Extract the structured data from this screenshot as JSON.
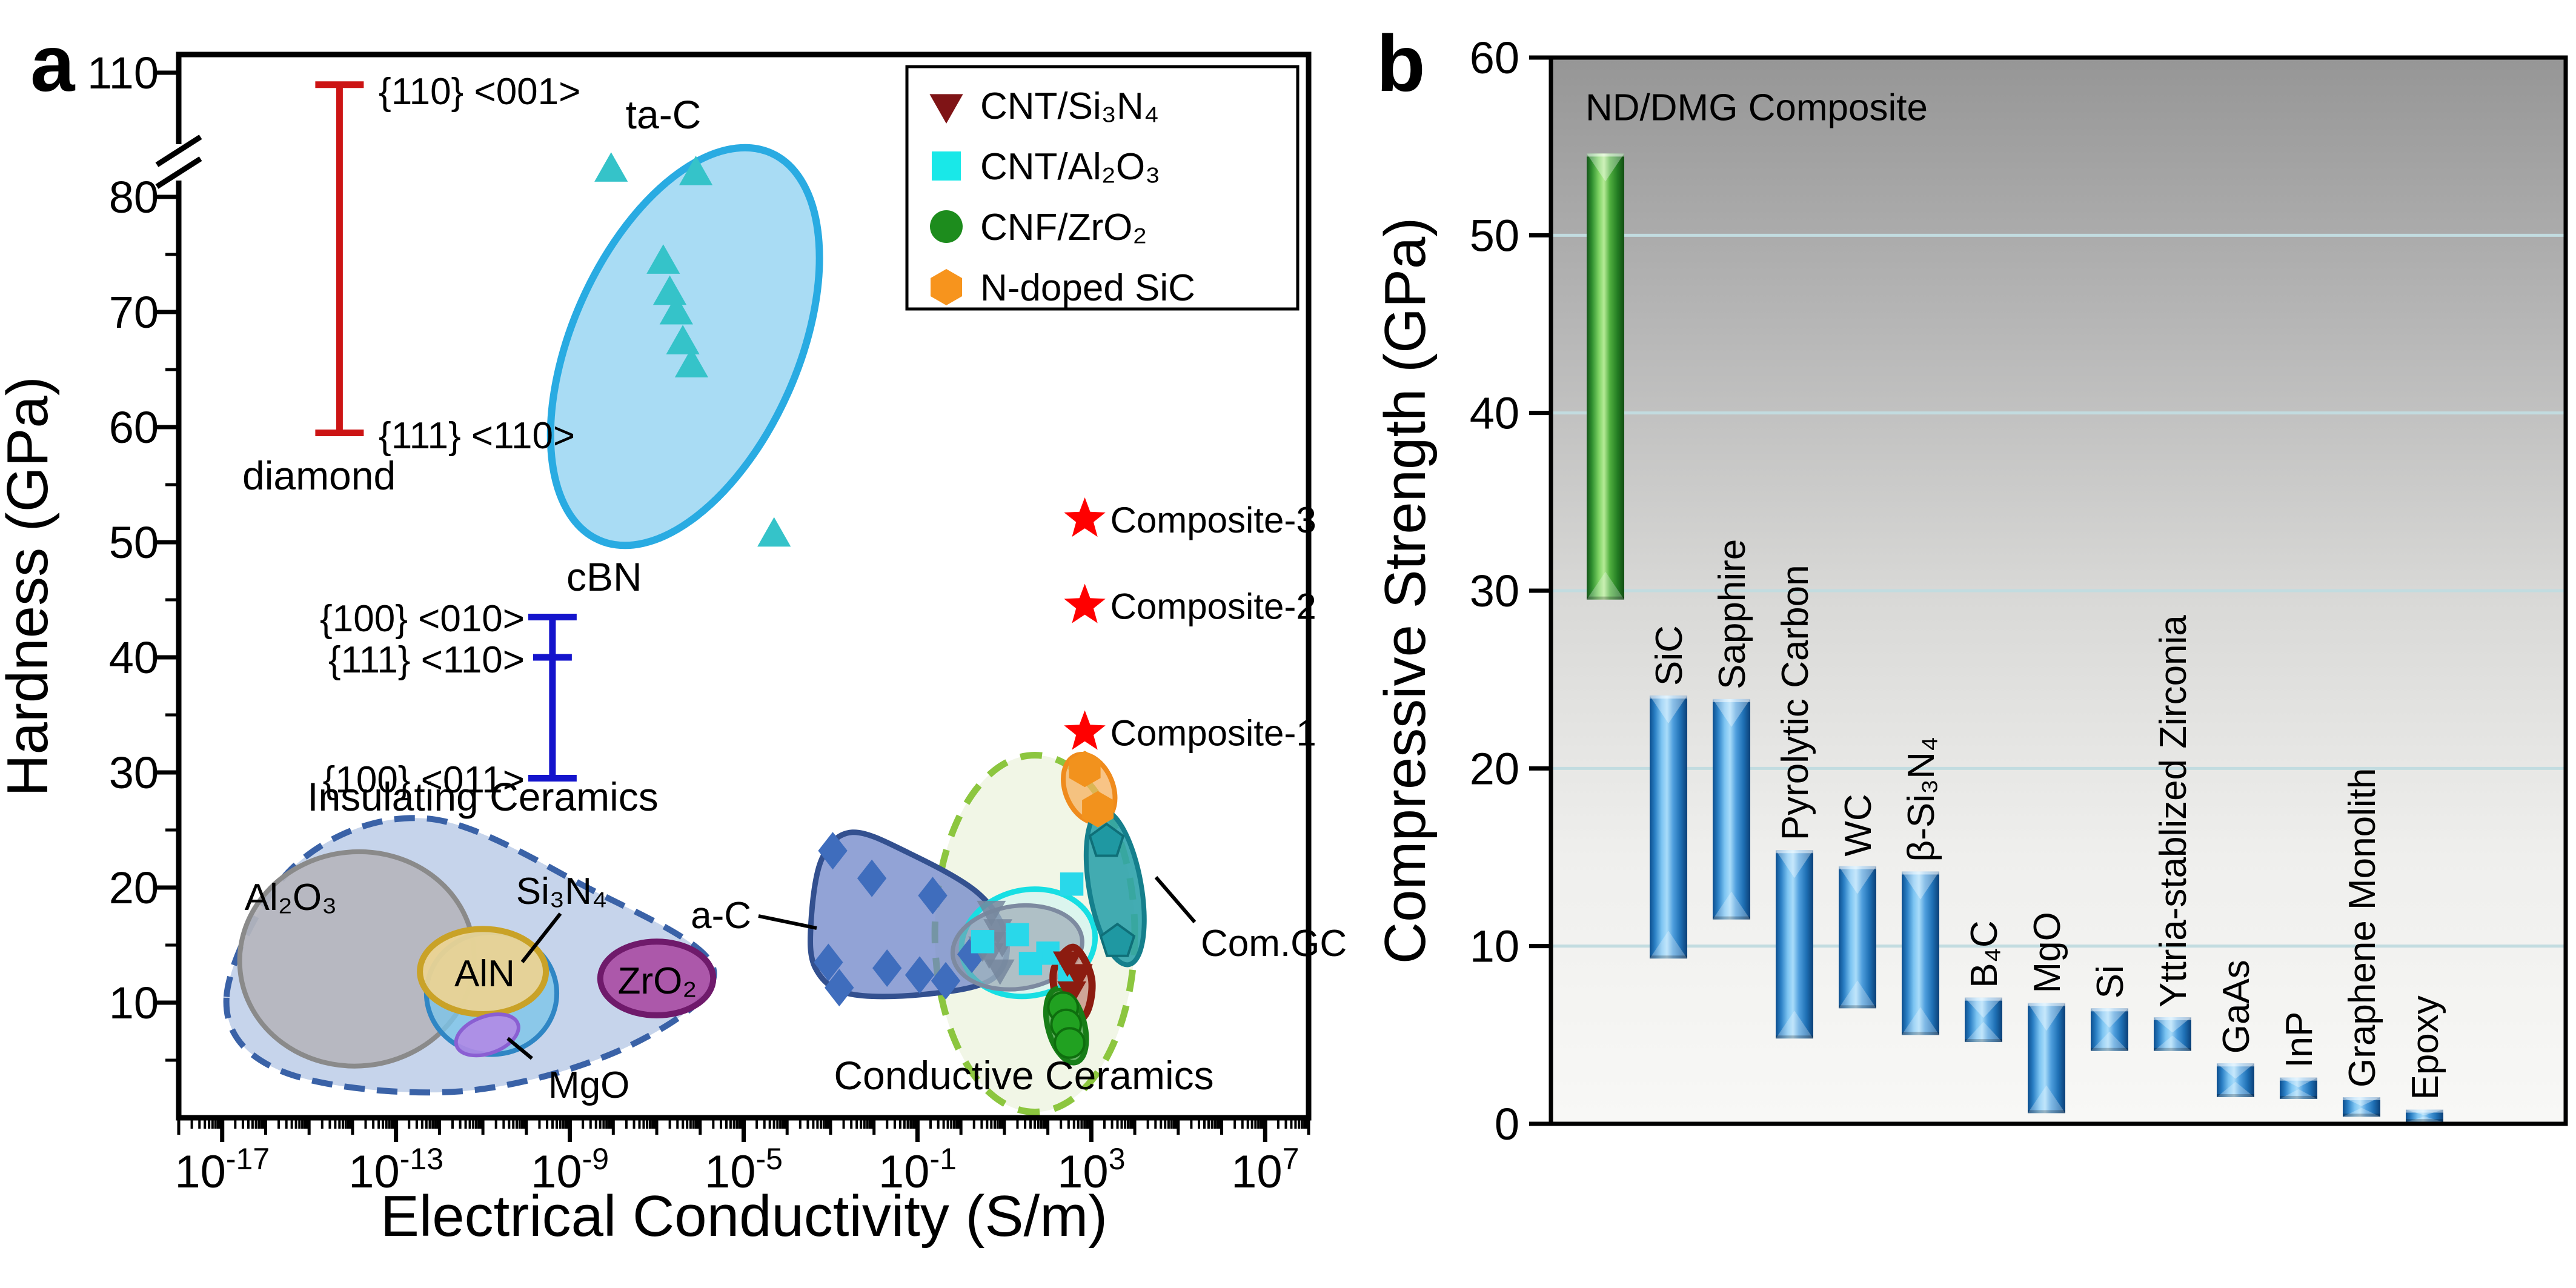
{
  "chart_data": [
    {
      "id": "panel-a",
      "panel_letter": "a",
      "type": "scatter",
      "xlabel": "Electrical Conductivity (S/m)",
      "ylabel": "Hardness (GPa)",
      "xscale": "log",
      "xlim_exponents": [
        -18,
        8
      ],
      "xtick_exponents": [
        -17,
        -13,
        -9,
        -5,
        -1,
        3,
        7
      ],
      "ylim": [
        0,
        110
      ],
      "yticks": [
        10,
        20,
        30,
        40,
        50,
        60,
        70,
        80
      ],
      "y_top_tick": 110,
      "y_axis_break_between": [
        85,
        110
      ],
      "legend": [
        {
          "label": "CNT/Si₃N₄",
          "marker": "triangle-down",
          "color": "#7f1416"
        },
        {
          "label": "CNT/Al₂O₃",
          "marker": "square",
          "color": "#19e8e8"
        },
        {
          "label": "CNF/ZrO₂",
          "marker": "circle",
          "color": "#1d8c1d"
        },
        {
          "label": "N-doped SiC",
          "marker": "hexagon",
          "color": "#f7941d"
        }
      ],
      "labels": {
        "ta_c": "ta-C",
        "a_c": "a-C",
        "com_gc": "Com.GC",
        "al2o3": "Al₂O₃",
        "si3n4": "Si₃N₄",
        "aln": "AlN",
        "zro2": "ZrO₂",
        "mgo": "MgO",
        "insulating": "Insulating Ceramics",
        "conductive": "Conductive Ceramics",
        "diamond": "diamond",
        "diamond_top": "{110} <001>",
        "diamond_bottom": "{111} <110>",
        "cbn": "cBN",
        "cbn_top": "{100} <010>",
        "cbn_mid": "{111} <110>",
        "cbn_bottom": "{100} <011>"
      },
      "error_bars": [
        {
          "name": "diamond",
          "x_exp": -14.3,
          "top": 105.5,
          "bottom": 59.5,
          "color": "#cc1414"
        },
        {
          "name": "cBN",
          "x_exp": -9.4,
          "top": 43.5,
          "mid": 40.0,
          "bottom": 29.5,
          "color": "#1414cc"
        }
      ],
      "stars": [
        {
          "label": "Composite-3",
          "x_exp": 2.85,
          "y": 52.0
        },
        {
          "label": "Composite-2",
          "x_exp": 2.85,
          "y": 44.5
        },
        {
          "label": "Composite-1",
          "x_exp": 2.85,
          "y": 33.5
        }
      ],
      "regions": [
        {
          "name": "insulating-ceramics",
          "shape": "blob",
          "points": [
            [
              -16.9,
              10.5
            ],
            [
              -15.3,
              22
            ],
            [
              -12.3,
              26
            ],
            [
              -8.6,
              20
            ],
            [
              -5.7,
              13
            ],
            [
              -7.6,
              6.3
            ],
            [
              -11.5,
              2.3
            ],
            [
              -15.6,
              4
            ]
          ],
          "fill": "#bccde8",
          "fill_opacity": 0.85,
          "stroke": "#3a62a7",
          "stroke_width": 10,
          "dash": "34 20"
        },
        {
          "name": "Al2O3",
          "shape": "ellipse",
          "cx_exp": -13.9,
          "cy": 13.8,
          "rx_dec": 2.7,
          "ry": 9.3,
          "rot": -6,
          "fill": "#b5b5bd",
          "fill_opacity": 0.92,
          "stroke": "#8a8a8a",
          "stroke_width": 8
        },
        {
          "name": "Si3N4",
          "shape": "ellipse",
          "cx_exp": -10.8,
          "cy": 10.8,
          "rx_dec": 1.5,
          "ry": 5.3,
          "rot": 0,
          "fill": "#7cc4e8",
          "fill_opacity": 0.8,
          "stroke": "#2f86c4",
          "stroke_width": 8
        },
        {
          "name": "AlN",
          "shape": "ellipse",
          "cx_exp": -11.0,
          "cy": 12.7,
          "rx_dec": 1.45,
          "ry": 3.7,
          "rot": 0,
          "fill": "#ead394",
          "fill_opacity": 0.95,
          "stroke": "#c9a227",
          "stroke_width": 10
        },
        {
          "name": "ZrO2",
          "shape": "ellipse",
          "cx_exp": -7.0,
          "cy": 12.1,
          "rx_dec": 1.3,
          "ry": 3.2,
          "rot": 0,
          "fill": "#ab51a6",
          "fill_opacity": 0.95,
          "stroke": "#6f1a6b",
          "stroke_width": 10
        },
        {
          "name": "MgO",
          "shape": "ellipse",
          "cx_exp": -10.9,
          "cy": 7.2,
          "rx_dec": 0.75,
          "ry": 1.6,
          "rot": -20,
          "fill": "#b08ae6",
          "fill_opacity": 0.9,
          "stroke": "#8a5fd2",
          "stroke_width": 6
        },
        {
          "name": "conductive-ceramics",
          "shape": "ellipse",
          "cx_exp": 1.7,
          "cy": 16,
          "rx_dec": 2.3,
          "ry": 15.5,
          "rot": 0,
          "fill": "#eef5e2",
          "fill_opacity": 0.85,
          "stroke": "#8cc63f",
          "stroke_width": 11,
          "dash": "36 24"
        },
        {
          "name": "a-C",
          "shape": "blob",
          "points": [
            [
              -3.45,
              17
            ],
            [
              -3.2,
              22.5
            ],
            [
              -2.5,
              24.8
            ],
            [
              -1.2,
              23
            ],
            [
              0.4,
              19.5
            ],
            [
              1.05,
              15.5
            ],
            [
              0.7,
              12
            ],
            [
              -0.9,
              10.7
            ],
            [
              -2.6,
              10.8
            ],
            [
              -3.35,
              13
            ]
          ],
          "fill": "#6d84c8",
          "fill_opacity": 0.75,
          "stroke": "#33508f",
          "stroke_width": 9
        },
        {
          "name": "CNT-Al2O3-region",
          "shape": "ellipse",
          "cx_exp": 1.55,
          "cy": 15.2,
          "rx_dec": 1.55,
          "ry": 4.6,
          "rot": -12,
          "fill": "#c9f4f4",
          "fill_opacity": 0.55,
          "stroke": "#17dfe3",
          "stroke_width": 9
        },
        {
          "name": "gray-region",
          "shape": "ellipse",
          "cx_exp": 1.3,
          "cy": 14.8,
          "rx_dec": 1.5,
          "ry": 3.6,
          "rot": -8,
          "fill": "#8a93a6",
          "fill_opacity": 0.55,
          "stroke": "#7d8aa0",
          "stroke_width": 7
        },
        {
          "name": "CNT-Si3N4-region",
          "shape": "blob",
          "points": [
            [
              2.15,
              13.0
            ],
            [
              2.6,
              14.8
            ],
            [
              3.0,
              12.2
            ],
            [
              2.9,
              9.2
            ],
            [
              2.5,
              8.2
            ],
            [
              2.2,
              10.3
            ]
          ],
          "fill": "#c59184",
          "fill_opacity": 0.8,
          "stroke": "#8c1c10",
          "stroke_width": 12
        },
        {
          "name": "N-doped-SiC-region",
          "shape": "ellipse",
          "cx_exp": 2.95,
          "cy": 28.6,
          "rx_dec": 0.55,
          "ry": 3.1,
          "rot": -22,
          "fill": "#f5b05e",
          "fill_opacity": 0.75,
          "stroke": "#ef8b1d",
          "stroke_width": 8
        },
        {
          "name": "Com-GC-region",
          "shape": "ellipse",
          "cx_exp": 3.55,
          "cy": 20,
          "rx_dec": 0.6,
          "ry": 6.8,
          "rot": -10,
          "fill": "#2fa3ab",
          "fill_opacity": 0.9,
          "stroke": "#157f8c",
          "stroke_width": 8
        },
        {
          "name": "CNF-ZrO2-region",
          "shape": "ellipse",
          "cx_exp": 2.42,
          "cy": 8.0,
          "rx_dec": 0.42,
          "ry": 3.3,
          "rot": -15,
          "fill": "#57ab57",
          "fill_opacity": 0.9,
          "stroke": "#177d17",
          "stroke_width": 9
        },
        {
          "name": "ta-C-region",
          "shape": "ellipse",
          "cx_exp": -6.35,
          "cy": 67,
          "rx_dec": 2.6,
          "ry": 18.4,
          "rot": 24,
          "fill": "#a9dcf4",
          "fill_opacity": 1,
          "stroke": "#29abe2",
          "stroke_width": 12
        }
      ],
      "series": [
        {
          "name": "ta-C",
          "marker": "triangle-up",
          "color": "#35c3c9",
          "size": 30,
          "points": [
            [
              -8.05,
              82.3
            ],
            [
              -6.1,
              82.0
            ],
            [
              -6.85,
              74.3
            ],
            [
              -6.7,
              71.6
            ],
            [
              -6.55,
              69.9
            ],
            [
              -6.4,
              67.3
            ],
            [
              -6.2,
              65.3
            ],
            [
              -4.3,
              50.6
            ]
          ]
        },
        {
          "name": "a-C",
          "marker": "diamond",
          "color": "#3f6dbd",
          "size": 31,
          "points": [
            [
              -2.95,
              23.2
            ],
            [
              -2.05,
              20.8
            ],
            [
              -0.65,
              19.3
            ],
            [
              -3.05,
              13.5
            ],
            [
              -1.7,
              13.0
            ],
            [
              -0.95,
              12.4
            ],
            [
              -2.8,
              11.3
            ],
            [
              0.25,
              14.2
            ],
            [
              -0.35,
              11.9
            ]
          ]
        },
        {
          "name": "unlabeled-gray",
          "marker": "triangle-down",
          "color": "#76869c",
          "opacity": 0.85,
          "size": 26,
          "points": [
            [
              0.7,
              18.0
            ],
            [
              0.85,
              16.4
            ],
            [
              0.95,
              15.3
            ],
            [
              0.5,
              14.9
            ],
            [
              0.65,
              14.3
            ],
            [
              0.9,
              12.9
            ]
          ]
        },
        {
          "name": "CNT/Al₂O₃",
          "marker": "square",
          "color": "#29d8ea",
          "size": 24,
          "points": [
            [
              2.55,
              20.3
            ],
            [
              1.3,
              15.9
            ],
            [
              0.5,
              15.3
            ],
            [
              2.0,
              14.3
            ],
            [
              1.6,
              13.4
            ],
            [
              2.5,
              12.3
            ]
          ]
        },
        {
          "name": "CNT/Si₃N₄",
          "marker": "triangle-down",
          "color": "#8c1c10",
          "size": 26,
          "points": [
            [
              2.45,
              13.6
            ],
            [
              2.7,
              12.5
            ],
            [
              2.55,
              11.0
            ]
          ]
        },
        {
          "name": "CNF/ZrO₂",
          "marker": "circle",
          "color": "#21a121",
          "stroke": "#0e6e0e",
          "size": 27,
          "points": [
            [
              2.35,
              9.6
            ],
            [
              2.42,
              8.1
            ],
            [
              2.5,
              6.5
            ]
          ]
        },
        {
          "name": "N-doped SiC",
          "marker": "hexagon",
          "color": "#f2921d",
          "size": 30,
          "points": [
            [
              2.85,
              30.3
            ],
            [
              3.15,
              26.8
            ]
          ]
        },
        {
          "name": "Com.GC",
          "marker": "pentagon",
          "color": "#1f98a2",
          "stroke": "#0f6f78",
          "size": 29,
          "points": [
            [
              3.35,
              24.0
            ],
            [
              3.6,
              15.3
            ]
          ]
        }
      ]
    },
    {
      "id": "panel-b",
      "panel_letter": "b",
      "type": "bar-range",
      "ylabel": "Compressive Strength (GPa)",
      "ylim": [
        0,
        60
      ],
      "yticks": [
        0,
        10,
        20,
        30,
        40,
        50,
        60
      ],
      "gridlines": [
        10,
        20,
        30,
        40,
        50
      ],
      "categories": [
        "ND/DMG Composite",
        "SiC",
        "Sapphire",
        "Pyrolytic Carbon",
        "WC",
        "β-Si₃N₄",
        "B₄C",
        "MgO",
        "Si",
        "Yttria-stablized Zirconia",
        "GaAs",
        "InP",
        "Graphene Monolith",
        "Epoxy"
      ],
      "ranges": [
        [
          29.5,
          54.6
        ],
        [
          9.3,
          24.1
        ],
        [
          11.5,
          23.9
        ],
        [
          4.8,
          15.4
        ],
        [
          6.5,
          14.5
        ],
        [
          5.0,
          14.2
        ],
        [
          4.6,
          7.1
        ],
        [
          0.6,
          6.8
        ],
        [
          4.1,
          6.5
        ],
        [
          4.1,
          6.0
        ],
        [
          1.5,
          3.4
        ],
        [
          1.4,
          2.6
        ],
        [
          0.4,
          1.5
        ],
        [
          0.1,
          0.8
        ]
      ],
      "bar_colors": [
        "green",
        "blue",
        "blue",
        "blue",
        "blue",
        "blue",
        "blue",
        "blue",
        "blue",
        "blue",
        "blue",
        "blue",
        "blue",
        "blue"
      ],
      "label_orientations": [
        "horizontal",
        "vertical",
        "vertical",
        "vertical",
        "vertical",
        "vertical",
        "vertical",
        "vertical",
        "vertical",
        "vertical",
        "vertical",
        "vertical",
        "vertical",
        "vertical"
      ],
      "colors": {
        "bar_blue": "#2585cc",
        "bar_green": "#3fa33f",
        "gridline": "#c2dce0"
      }
    }
  ]
}
